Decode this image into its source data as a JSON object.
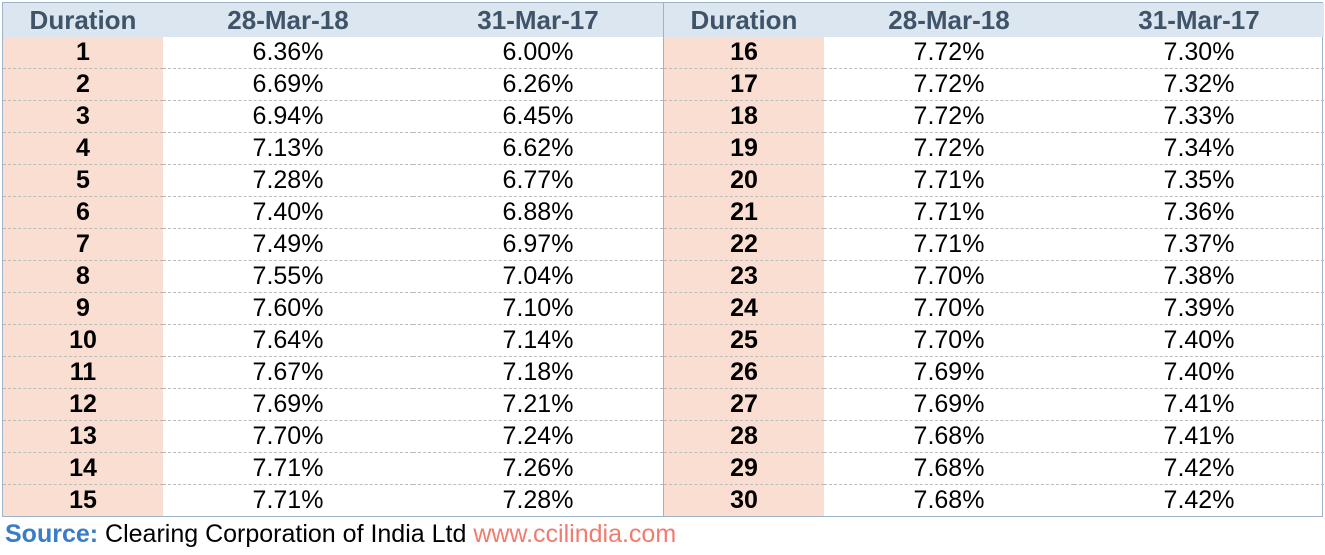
{
  "headers": [
    "Duration",
    "28-Mar-18",
    "31-Mar-17"
  ],
  "left_rows": [
    [
      "1",
      "6.36%",
      "6.00%"
    ],
    [
      "2",
      "6.69%",
      "6.26%"
    ],
    [
      "3",
      "6.94%",
      "6.45%"
    ],
    [
      "4",
      "7.13%",
      "6.62%"
    ],
    [
      "5",
      "7.28%",
      "6.77%"
    ],
    [
      "6",
      "7.40%",
      "6.88%"
    ],
    [
      "7",
      "7.49%",
      "6.97%"
    ],
    [
      "8",
      "7.55%",
      "7.04%"
    ],
    [
      "9",
      "7.60%",
      "7.10%"
    ],
    [
      "10",
      "7.64%",
      "7.14%"
    ],
    [
      "11",
      "7.67%",
      "7.18%"
    ],
    [
      "12",
      "7.69%",
      "7.21%"
    ],
    [
      "13",
      "7.70%",
      "7.24%"
    ],
    [
      "14",
      "7.71%",
      "7.26%"
    ],
    [
      "15",
      "7.71%",
      "7.28%"
    ]
  ],
  "right_rows": [
    [
      "16",
      "7.72%",
      "7.30%"
    ],
    [
      "17",
      "7.72%",
      "7.32%"
    ],
    [
      "18",
      "7.72%",
      "7.33%"
    ],
    [
      "19",
      "7.72%",
      "7.34%"
    ],
    [
      "20",
      "7.71%",
      "7.35%"
    ],
    [
      "21",
      "7.71%",
      "7.36%"
    ],
    [
      "22",
      "7.71%",
      "7.37%"
    ],
    [
      "23",
      "7.70%",
      "7.38%"
    ],
    [
      "24",
      "7.70%",
      "7.39%"
    ],
    [
      "25",
      "7.70%",
      "7.40%"
    ],
    [
      "26",
      "7.69%",
      "7.40%"
    ],
    [
      "27",
      "7.69%",
      "7.41%"
    ],
    [
      "28",
      "7.68%",
      "7.41%"
    ],
    [
      "29",
      "7.68%",
      "7.42%"
    ],
    [
      "30",
      "7.68%",
      "7.42%"
    ]
  ],
  "source": {
    "label": "Source:",
    "text": " Clearing Corporation of India Ltd ",
    "url": "www.ccilindia.com"
  },
  "colors": {
    "header_bg": "#dbe6f1",
    "header_text": "#3f5369",
    "duration_bg": "#fbded2",
    "source_label": "#3b7dc4",
    "source_url": "#f07b6f"
  }
}
